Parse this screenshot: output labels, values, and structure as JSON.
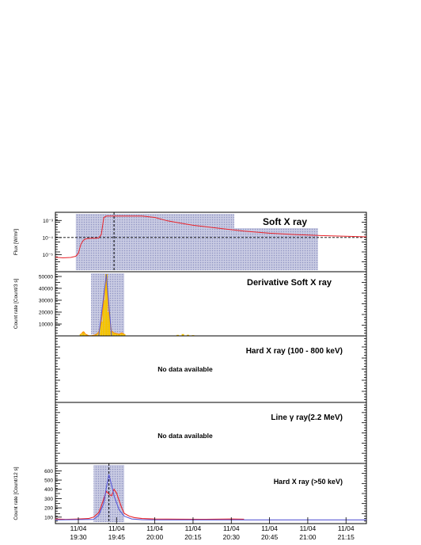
{
  "colors": {
    "shade": "#b9bcd9",
    "shade_dot": "#7f84b8",
    "soft_xray_line": "#e8242b",
    "derivative_fill": "#f5c400",
    "derivative_line": "#ff8c00",
    "fit_line": "#5a5ad6",
    "hxr_line": "#e8242b"
  },
  "chart_data": [
    {
      "type": "line",
      "title": "Soft X ray",
      "ylabel": "Flux [W/m²]",
      "ylog": true,
      "y_ticklabels": [
        "10⁻³",
        "10⁻⁴",
        "10⁻⁵"
      ],
      "y_tick_values": [
        0.001,
        0.0001,
        1e-05
      ],
      "xlim": [
        "19:21",
        "21:23"
      ],
      "ylim": [
        1e-06,
        0.003
      ],
      "shaded_interval": [
        "19:29",
        "21:04"
      ],
      "hline": 0.0001,
      "vline": "19:44",
      "series": [
        {
          "x": [
            "19:21",
            "19:24",
            "19:27",
            "19:29",
            "19:30",
            "19:31",
            "19:32",
            "19:33",
            "19:35",
            "19:36",
            "19:37",
            "19:38",
            "19:39",
            "19:40",
            "19:41",
            "19:43",
            "19:45",
            "19:50",
            "19:55",
            "20:00",
            "20:05",
            "20:10",
            "20:15",
            "20:25",
            "20:35",
            "20:45",
            "20:55",
            "21:05",
            "21:15",
            "21:23"
          ],
          "y": [
            7e-06,
            6.5e-06,
            6.8e-06,
            8e-06,
            1.2e-05,
            4e-05,
            7e-05,
            8.5e-05,
            9e-05,
            9e-05,
            9e-05,
            9.5e-05,
            0.00015,
            0.0015,
            0.0018,
            0.0018,
            0.0018,
            0.0018,
            0.0018,
            0.0015,
            0.00095,
            0.0007,
            0.00052,
            0.00035,
            0.00024,
            0.00018,
            0.00015,
            0.00013,
            0.00012,
            0.00011
          ]
        }
      ]
    },
    {
      "type": "bar",
      "title": "Derivative Soft X ray",
      "ylabel": "Count rate [Count/3 s]",
      "y_ticklabels": [
        "50000",
        "40000",
        "30000",
        "20000",
        "10000"
      ],
      "y_tick_values": [
        50000,
        40000,
        30000,
        20000,
        10000
      ],
      "xlim": [
        "19:21",
        "21:23"
      ],
      "ylim": [
        0,
        54000
      ],
      "shaded_interval": [
        "19:35",
        "19:48"
      ],
      "series": [
        {
          "x": [
            "19:31",
            "19:32",
            "19:33",
            "19:34",
            "19:35",
            "19:36",
            "19:37",
            "19:38",
            "19:39",
            "19:40",
            "19:41",
            "19:42",
            "19:43",
            "19:44",
            "19:45",
            "19:46",
            "19:47",
            "19:48",
            "20:09",
            "20:11",
            "20:13",
            "20:15"
          ],
          "y": [
            1500,
            3500,
            1200,
            300,
            200,
            500,
            1200,
            3000,
            12000,
            30000,
            52000,
            20000,
            4000,
            2500,
            2000,
            1500,
            2500,
            1500,
            800,
            1500,
            900,
            600
          ]
        }
      ]
    },
    {
      "type": "line",
      "title": "Hard X ray (100 - 800 keV)",
      "message": "No data available",
      "series": []
    },
    {
      "type": "line",
      "title": "Line γ ray(2.2 MeV)",
      "message": "No data available",
      "series": []
    },
    {
      "type": "line",
      "title": "Hard X ray (>50 keV)",
      "ylabel": "Count rate [Count/12 s]",
      "y_ticklabels": [
        "600",
        "500",
        "400",
        "300",
        "200",
        "100"
      ],
      "y_tick_values": [
        600,
        500,
        400,
        300,
        200,
        100
      ],
      "xlim": [
        "19:21",
        "21:23"
      ],
      "ylim": [
        30,
        680
      ],
      "shaded_interval": [
        "19:36",
        "19:48"
      ],
      "vline": "19:42",
      "x_ticklabels": [
        [
          "11/04",
          "19:30"
        ],
        [
          "11/04",
          "19:45"
        ],
        [
          "11/04",
          "20:00"
        ],
        [
          "11/04",
          "20:15"
        ],
        [
          "11/04",
          "20:30"
        ],
        [
          "11/04",
          "20:45"
        ],
        [
          "11/04",
          "21:00"
        ],
        [
          "11/04",
          "21:15"
        ]
      ],
      "x_tick_values": [
        "19:30",
        "19:45",
        "20:00",
        "20:15",
        "20:30",
        "20:45",
        "21:00",
        "21:15"
      ],
      "series": [
        {
          "name": "",
          "x": [
            "19:21",
            "19:25",
            "19:30",
            "19:34",
            "19:36",
            "19:38",
            "19:39",
            "19:40",
            "19:41",
            "19:42",
            "19:43",
            "19:44",
            "19:45",
            "19:46",
            "19:47",
            "19:48",
            "19:50",
            "19:52",
            "19:55",
            "20:00",
            "20:10",
            "20:20",
            "20:30",
            "20:35"
          ],
          "y": [
            80,
            75,
            80,
            85,
            100,
            150,
            220,
            300,
            380,
            350,
            330,
            400,
            360,
            280,
            200,
            140,
            110,
            95,
            85,
            80,
            78,
            76,
            80,
            78
          ]
        },
        {
          "name": "",
          "x": [
            "19:21",
            "19:36",
            "19:38",
            "19:40",
            "19:41",
            "19:42",
            "19:43",
            "19:44",
            "19:46",
            "19:48",
            "19:51",
            "19:55",
            "20:00",
            "20:30",
            "21:00",
            "21:23"
          ],
          "y": [
            70,
            75,
            120,
            250,
            420,
            560,
            450,
            330,
            180,
            110,
            80,
            72,
            70,
            70,
            70,
            70
          ]
        }
      ]
    }
  ]
}
